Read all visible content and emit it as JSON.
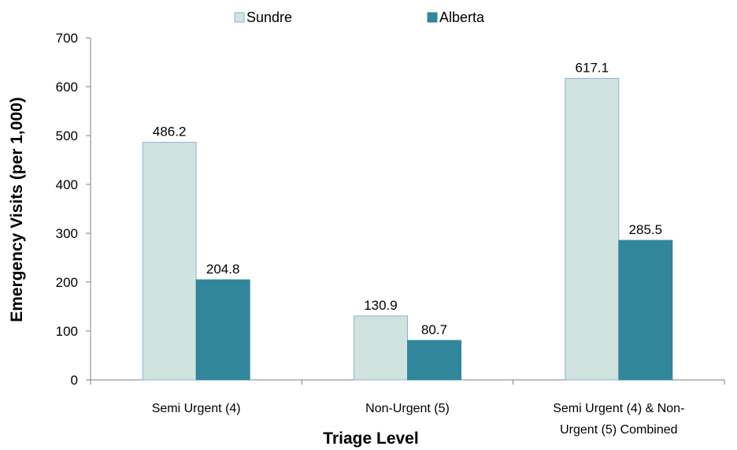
{
  "chart_data": {
    "type": "bar",
    "title": "",
    "xlabel": "Triage Level",
    "ylabel": "Emergency Visits (per 1,000)",
    "ylim": [
      0,
      700
    ],
    "yticks": [
      0,
      100,
      200,
      300,
      400,
      500,
      600,
      700
    ],
    "grid": false,
    "legend_position": "top",
    "categories": [
      [
        "Semi Urgent (4)"
      ],
      [
        "Non-Urgent (5)"
      ],
      [
        "Semi Urgent (4) & Non-",
        "Urgent (5) Combined"
      ]
    ],
    "series": [
      {
        "name": "Sundre",
        "values": [
          486.2,
          130.9,
          617.1
        ],
        "labels": [
          "486.2",
          "130.9",
          "617.1"
        ],
        "color": "#d0e3df",
        "stroke": "#8fb0dd"
      },
      {
        "name": "Alberta",
        "values": [
          204.8,
          80.7,
          285.5
        ],
        "labels": [
          "204.8",
          "80.7",
          "285.5"
        ],
        "color": "#31869b",
        "stroke": "#31869b"
      }
    ]
  }
}
